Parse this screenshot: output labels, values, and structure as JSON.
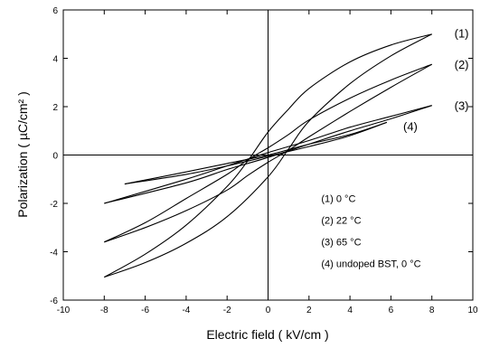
{
  "chart_data": {
    "type": "line",
    "title": "",
    "xlabel": "Electric field ( kV/cm )",
    "ylabel": "Polarization ( µC/cm² )",
    "xlim": [
      -10,
      10
    ],
    "ylim": [
      -6,
      6
    ],
    "xticks": [
      "-10",
      "-8",
      "-6",
      "-4",
      "-2",
      "0",
      "2",
      "4",
      "6",
      "8",
      "10"
    ],
    "yticks": [
      "-6",
      "-4",
      "-2",
      "0",
      "2",
      "4",
      "6"
    ],
    "grid": false,
    "axes_through_origin": true,
    "series": [
      {
        "id": "1",
        "label": "(1)",
        "legend": "(1)    0 °C",
        "upper": [
          [
            -8,
            -5.05
          ],
          [
            -6,
            -4.1
          ],
          [
            -4,
            -2.9
          ],
          [
            -2,
            -1.3
          ],
          [
            -1,
            -0.25
          ],
          [
            0,
            0.95
          ],
          [
            1,
            1.9
          ],
          [
            2,
            2.75
          ],
          [
            4,
            3.85
          ],
          [
            6,
            4.55
          ],
          [
            8,
            5.0
          ]
        ],
        "lower": [
          [
            -8,
            -5.05
          ],
          [
            -6,
            -4.45
          ],
          [
            -4,
            -3.65
          ],
          [
            -2,
            -2.55
          ],
          [
            0,
            -0.9
          ],
          [
            1,
            0.25
          ],
          [
            2,
            1.4
          ],
          [
            4,
            2.95
          ],
          [
            6,
            4.1
          ],
          [
            8,
            5.0
          ]
        ]
      },
      {
        "id": "2",
        "label": "(2)",
        "legend": "(2)  22 °C",
        "upper": [
          [
            -8,
            -3.6
          ],
          [
            -6,
            -2.8
          ],
          [
            -4,
            -1.8
          ],
          [
            -2,
            -0.8
          ],
          [
            -1,
            -0.2
          ],
          [
            0,
            0.3
          ],
          [
            1,
            0.85
          ],
          [
            2,
            1.45
          ],
          [
            4,
            2.35
          ],
          [
            6,
            3.1
          ],
          [
            8,
            3.75
          ]
        ],
        "lower": [
          [
            -8,
            -3.6
          ],
          [
            -6,
            -3.0
          ],
          [
            -4,
            -2.3
          ],
          [
            -2,
            -1.45
          ],
          [
            -1,
            -0.85
          ],
          [
            0,
            -0.3
          ],
          [
            1,
            0.2
          ],
          [
            2,
            0.75
          ],
          [
            4,
            1.8
          ],
          [
            6,
            2.8
          ],
          [
            8,
            3.75
          ]
        ]
      },
      {
        "id": "3",
        "label": "(3)",
        "legend": "(3)  65 °C",
        "upper": [
          [
            -8,
            -2.0
          ],
          [
            -4,
            -1.0
          ],
          [
            -2,
            -0.45
          ],
          [
            0,
            0.1
          ],
          [
            2,
            0.6
          ],
          [
            4,
            1.15
          ],
          [
            6,
            1.6
          ],
          [
            8,
            2.05
          ]
        ],
        "lower": [
          [
            -8,
            -2.0
          ],
          [
            -4,
            -1.15
          ],
          [
            -2,
            -0.6
          ],
          [
            0,
            -0.1
          ],
          [
            2,
            0.45
          ],
          [
            4,
            1.0
          ],
          [
            6,
            1.5
          ],
          [
            8,
            2.05
          ]
        ]
      },
      {
        "id": "4",
        "label": "(4)",
        "legend": "(4)  undoped BST, 0 °C",
        "upper": [
          [
            -7,
            -1.2
          ],
          [
            -4,
            -0.7
          ],
          [
            -2,
            -0.35
          ],
          [
            0,
            0.0
          ],
          [
            2,
            0.45
          ],
          [
            4,
            0.85
          ],
          [
            5.8,
            1.35
          ]
        ],
        "lower": [
          [
            -7,
            -1.2
          ],
          [
            -4,
            -0.8
          ],
          [
            -2,
            -0.45
          ],
          [
            0,
            -0.05
          ],
          [
            2,
            0.35
          ],
          [
            4,
            0.8
          ],
          [
            5.8,
            1.35
          ]
        ]
      }
    ],
    "curve_labels": [
      {
        "text": "(1)",
        "series": "1"
      },
      {
        "text": "(2)",
        "series": "2"
      },
      {
        "text": "(3)",
        "series": "3"
      },
      {
        "text": "(4)",
        "series": "4"
      }
    ],
    "legend_placement": "bottom-right"
  }
}
